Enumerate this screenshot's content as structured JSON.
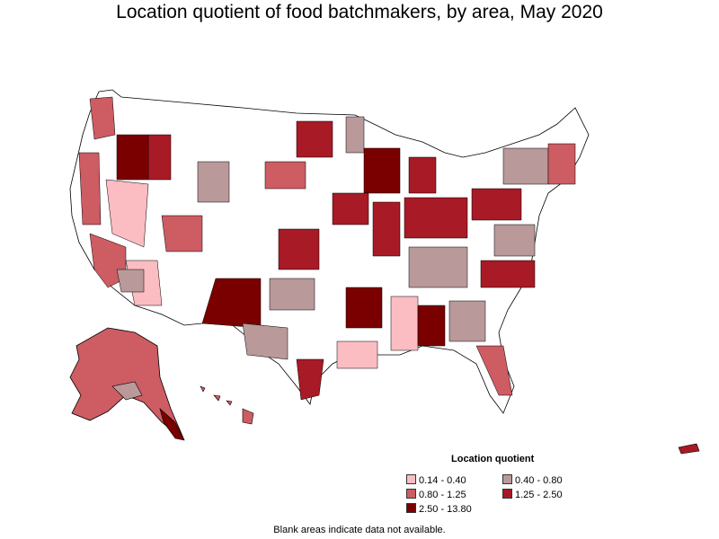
{
  "title": "Location quotient of food batchmakers, by area, May 2020",
  "legend": {
    "title": "Location quotient",
    "items": [
      {
        "label": "0.14 - 0.40",
        "color": "#fbbcc2"
      },
      {
        "label": "0.40 - 0.80",
        "color": "#b9999a"
      },
      {
        "label": "0.80 - 1.25",
        "color": "#cd5c63"
      },
      {
        "label": "1.25 - 2.50",
        "color": "#a81a25"
      },
      {
        "label": "2.50 - 13.80",
        "color": "#7a0000"
      }
    ]
  },
  "footnote": "Blank areas indicate data not available.",
  "colors": {
    "no_data": "#ffffff",
    "border": "#000000",
    "background": "#ffffff"
  }
}
